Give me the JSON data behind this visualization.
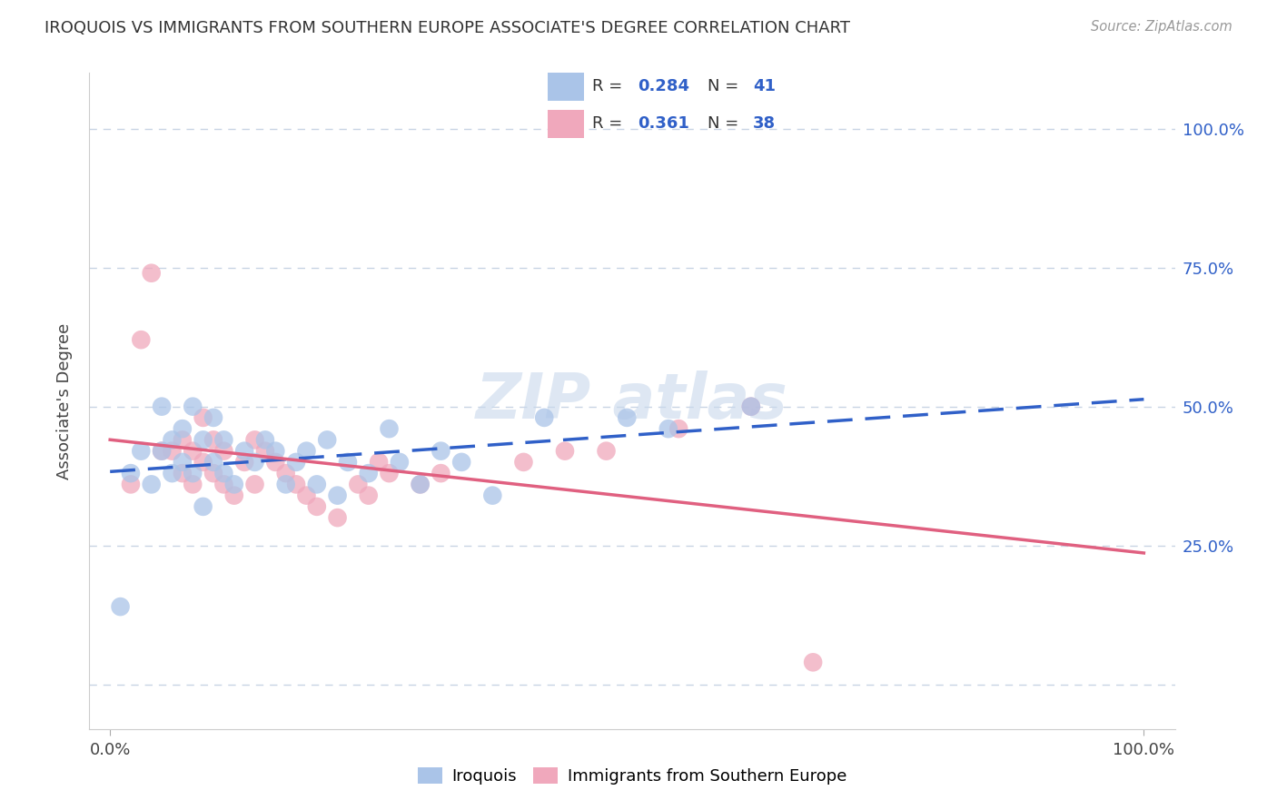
{
  "title": "IROQUOIS VS IMMIGRANTS FROM SOUTHERN EUROPE ASSOCIATE'S DEGREE CORRELATION CHART",
  "source": "Source: ZipAtlas.com",
  "ylabel": "Associate's Degree",
  "r_iroquois": 0.284,
  "n_iroquois": 41,
  "r_immigrants": 0.361,
  "n_immigrants": 38,
  "iroquois_color": "#aac4e8",
  "immigrants_color": "#f0a8bc",
  "iroquois_line_color": "#3060c8",
  "immigrants_line_color": "#e06080",
  "iroquois_x": [
    1,
    2,
    3,
    4,
    5,
    5,
    6,
    6,
    7,
    7,
    8,
    8,
    9,
    9,
    10,
    10,
    11,
    11,
    12,
    13,
    14,
    15,
    16,
    17,
    18,
    19,
    20,
    21,
    22,
    23,
    25,
    27,
    28,
    30,
    32,
    34,
    37,
    42,
    50,
    54,
    62
  ],
  "iroquois_y": [
    14,
    38,
    42,
    36,
    42,
    50,
    38,
    44,
    40,
    46,
    38,
    50,
    32,
    44,
    40,
    48,
    38,
    44,
    36,
    42,
    40,
    44,
    42,
    36,
    40,
    42,
    36,
    44,
    34,
    40,
    38,
    46,
    40,
    36,
    42,
    40,
    34,
    48,
    48,
    46,
    50
  ],
  "immigrants_x": [
    2,
    3,
    4,
    5,
    6,
    7,
    7,
    8,
    8,
    9,
    9,
    10,
    10,
    11,
    11,
    12,
    13,
    14,
    14,
    15,
    16,
    17,
    18,
    19,
    20,
    22,
    24,
    25,
    26,
    27,
    30,
    32,
    40,
    44,
    48,
    55,
    62,
    68
  ],
  "immigrants_y": [
    36,
    62,
    74,
    42,
    42,
    38,
    44,
    36,
    42,
    40,
    48,
    38,
    44,
    36,
    42,
    34,
    40,
    36,
    44,
    42,
    40,
    38,
    36,
    34,
    32,
    30,
    36,
    34,
    40,
    38,
    36,
    38,
    40,
    42,
    42,
    46,
    50,
    4
  ],
  "xlim": [
    -2,
    103
  ],
  "ylim": [
    -8,
    110
  ],
  "ytick_values": [
    0,
    25,
    50,
    75,
    100
  ],
  "background_color": "#ffffff",
  "grid_color": "#c8d4e4",
  "watermark_color": "#c8d8ec"
}
